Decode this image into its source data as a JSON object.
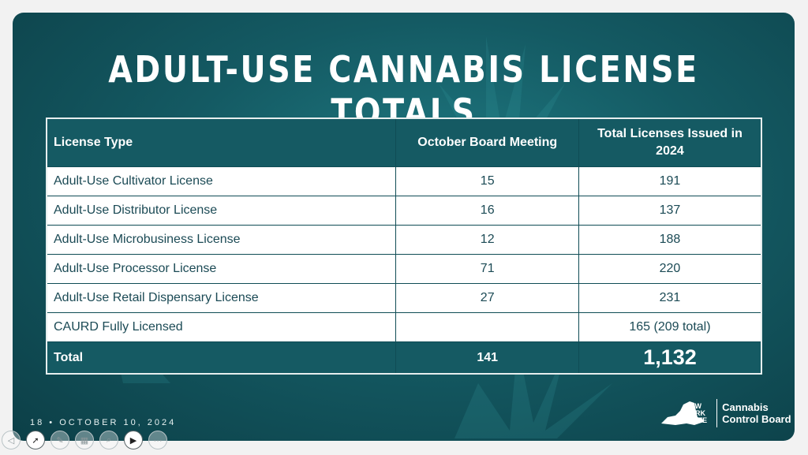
{
  "slide": {
    "title": "ADULT-USE CANNABIS LICENSE TOTALS",
    "footer": "18  •  OCTOBER 10, 2024",
    "logo": {
      "state_lines": [
        "NEW",
        "YORK",
        "STATE"
      ],
      "org_line1": "Cannabis",
      "org_line2": "Control Board"
    }
  },
  "table": {
    "headers": [
      "License Type",
      "October Board Meeting",
      "Total Licenses Issued in 2024"
    ],
    "rows": [
      {
        "type": "Adult-Use Cultivator License",
        "october": "15",
        "total": "191"
      },
      {
        "type": "Adult-Use Distributor License",
        "october": "16",
        "total": "137"
      },
      {
        "type": "Adult-Use Microbusiness License",
        "october": "12",
        "total": "188"
      },
      {
        "type": "Adult-Use Processor License",
        "october": "71",
        "total": "220"
      },
      {
        "type": "Adult-Use Retail Dispensary License",
        "october": "27",
        "total": "231"
      },
      {
        "type": "CAURD Fully Licensed",
        "october": "",
        "total": "165 (209 total)"
      }
    ],
    "total_row": {
      "label": "Total",
      "october": "141",
      "total": "1,132"
    }
  },
  "toolbar": {
    "buttons": [
      "previous-slide-icon",
      "pointer-icon",
      "pen-icon",
      "slides-grid-icon",
      "zoom-icon",
      "camera-icon",
      "more-options-icon"
    ]
  },
  "colors": {
    "teal_dark": "#0c3f47",
    "teal_header": "#155a63",
    "text_row": "#1b4a55"
  }
}
